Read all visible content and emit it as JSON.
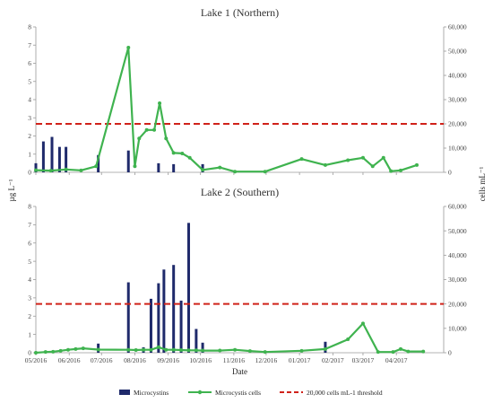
{
  "chart_data": [
    {
      "type": "bar",
      "title": "Lake 1 (Northern)",
      "ylabel": "µg L⁻¹",
      "y2label": "cells mL⁻¹",
      "ylim": [
        0,
        8
      ],
      "y2lim": [
        0,
        60000
      ],
      "yticks": [
        0,
        1,
        2,
        3,
        4,
        5,
        6,
        7,
        8
      ],
      "y2ticks": [
        0,
        10000,
        20000,
        30000,
        40000,
        50000,
        60000
      ],
      "xlim": [
        "2016-05-01",
        "2017-05-15"
      ],
      "bars": {
        "name": "Microcystins",
        "color": "#1f2a6b",
        "x": [
          "2016-05-01",
          "2016-05-08",
          "2016-05-16",
          "2016-05-23",
          "2016-05-29",
          "2016-06-28",
          "2016-07-26",
          "2016-08-23",
          "2016-09-06",
          "2016-10-03"
        ],
        "y": [
          0.5,
          1.7,
          1.95,
          1.4,
          1.4,
          0.95,
          1.2,
          0.5,
          0.45,
          0.45
        ]
      },
      "line": {
        "name": "Microcystis cells",
        "color": "#3fb34f",
        "x": [
          "2016-05-01",
          "2016-05-15",
          "2016-05-29",
          "2016-06-12",
          "2016-06-26",
          "2016-07-26",
          "2016-08-01",
          "2016-08-05",
          "2016-08-12",
          "2016-08-19",
          "2016-08-24",
          "2016-08-30",
          "2016-09-06",
          "2016-09-14",
          "2016-09-21",
          "2016-10-03",
          "2016-10-19",
          "2016-11-02",
          "2016-11-30",
          "2017-01-03",
          "2017-01-25",
          "2017-02-15",
          "2017-03-01",
          "2017-03-10",
          "2017-03-20",
          "2017-03-27",
          "2017-04-05",
          "2017-04-20"
        ],
        "y": [
          900,
          700,
          1200,
          800,
          2500,
          51500,
          2500,
          14000,
          17500,
          17500,
          28500,
          14000,
          8000,
          7800,
          6000,
          1000,
          2000,
          300,
          300,
          5500,
          3000,
          5000,
          6000,
          2500,
          6000,
          500,
          800,
          3000
        ]
      },
      "threshold": {
        "name": "20,000 cells mL-1 threshold",
        "value": 20000,
        "color": "#d0221a"
      }
    },
    {
      "type": "bar",
      "title": "Lake 2 (Southern)",
      "xlabel": "Date",
      "ylabel": "µg L⁻¹",
      "y2label": "cells mL⁻¹",
      "ylim": [
        0,
        8
      ],
      "y2lim": [
        0,
        60000
      ],
      "yticks": [
        0,
        1,
        2,
        3,
        4,
        5,
        6,
        7,
        8
      ],
      "y2ticks": [
        0,
        10000,
        20000,
        30000,
        40000,
        50000,
        60000
      ],
      "xlim": [
        "2016-05-01",
        "2017-05-15"
      ],
      "xticks": [
        "05/2016",
        "06/2016",
        "07/2016",
        "08/2016",
        "09/2016",
        "10/2016",
        "11/2016",
        "12/2016",
        "01/2017",
        "02/2017",
        "03/2017",
        "04/2017"
      ],
      "bars": {
        "name": "Microcystins",
        "color": "#1f2a6b",
        "x": [
          "2016-06-28",
          "2016-07-26",
          "2016-08-09",
          "2016-08-16",
          "2016-08-23",
          "2016-08-28",
          "2016-09-06",
          "2016-09-13",
          "2016-09-20",
          "2016-09-27",
          "2016-10-03",
          "2017-01-25"
        ],
        "y": [
          0.5,
          3.85,
          0.3,
          2.95,
          3.8,
          4.55,
          4.8,
          2.85,
          7.1,
          1.3,
          0.55,
          0.6
        ]
      },
      "line": {
        "name": "Microcystis cells",
        "color": "#3fb34f",
        "x": [
          "2016-05-01",
          "2016-05-10",
          "2016-05-17",
          "2016-05-24",
          "2016-05-31",
          "2016-06-07",
          "2016-06-14",
          "2016-06-28",
          "2016-07-26",
          "2016-08-02",
          "2016-08-09",
          "2016-08-16",
          "2016-08-23",
          "2016-08-30",
          "2016-09-06",
          "2016-09-13",
          "2016-09-20",
          "2016-09-27",
          "2016-10-03",
          "2016-10-19",
          "2016-11-02",
          "2016-11-16",
          "2016-11-30",
          "2017-01-03",
          "2017-01-25",
          "2017-02-15",
          "2017-03-01",
          "2017-03-15",
          "2017-03-29",
          "2017-04-05",
          "2017-04-12",
          "2017-04-26"
        ],
        "y": [
          0,
          300,
          400,
          800,
          1200,
          1500,
          1800,
          1300,
          1200,
          1100,
          1200,
          1200,
          2300,
          1200,
          1200,
          1100,
          1000,
          1000,
          900,
          900,
          1200,
          700,
          300,
          800,
          1500,
          5500,
          12000,
          300,
          300,
          1500,
          500,
          500
        ]
      },
      "threshold": {
        "name": "20,000 cells mL-1 threshold",
        "value": 20000,
        "color": "#d0221a"
      }
    }
  ],
  "legend": {
    "placement": "bottom",
    "items": [
      "Microcystins",
      "Microcystis cells",
      "20,000 cells mL-1 threshold"
    ]
  }
}
